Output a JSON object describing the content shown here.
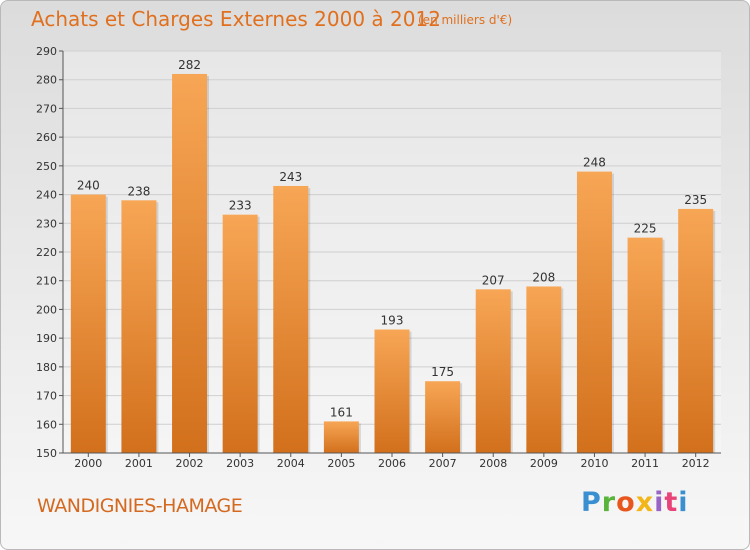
{
  "header": {
    "title": "Achats et Charges Externes 2000 à 2012",
    "subtitle": "(en milliers d'€)"
  },
  "footer": {
    "town": "WANDIGNIES-HAMAGE",
    "logo": "Proxiti"
  },
  "colors": {
    "bar_light": "#f7a655",
    "bar_dark": "#d2701c",
    "grid": "#cfcfcf",
    "title": "#e0701e"
  },
  "chart_data": {
    "type": "bar",
    "categories": [
      "2000",
      "2001",
      "2002",
      "2003",
      "2004",
      "2005",
      "2006",
      "2007",
      "2008",
      "2009",
      "2010",
      "2011",
      "2012"
    ],
    "values": [
      240,
      238,
      282,
      233,
      243,
      161,
      193,
      175,
      207,
      208,
      248,
      225,
      235
    ],
    "title": "Achats et Charges Externes 2000 à 2012",
    "xlabel": "",
    "ylabel": "",
    "ylim": [
      150,
      290
    ],
    "yticks": [
      150,
      160,
      170,
      180,
      190,
      200,
      210,
      220,
      230,
      240,
      250,
      260,
      270,
      280,
      290
    ],
    "grid": true,
    "data_labels": true
  }
}
